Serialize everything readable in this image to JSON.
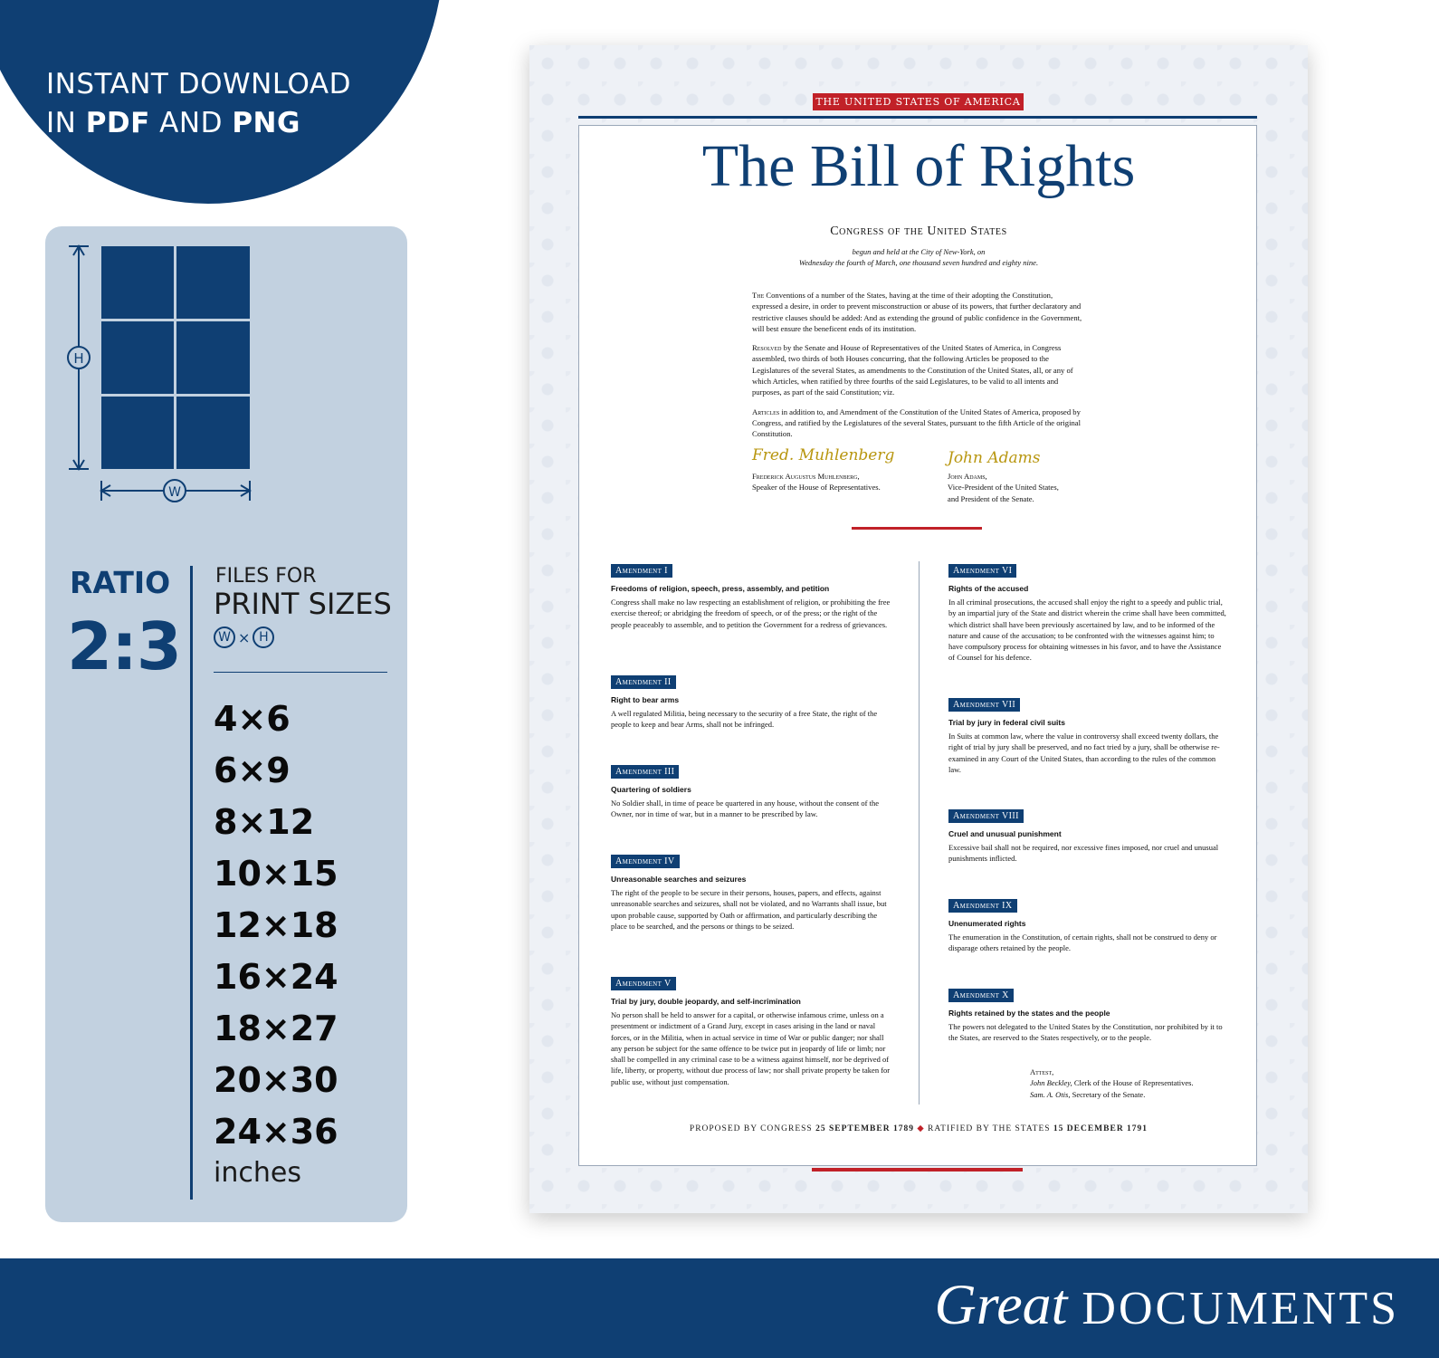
{
  "badge": {
    "line1": "INSTANT DOWNLOAD",
    "line2_pre": "IN ",
    "line2_pdf": "PDF",
    "line2_mid": " AND ",
    "line2_png": "PNG"
  },
  "panel": {
    "diagram_w": "W",
    "diagram_h": "H",
    "ratio_label": "RATIO",
    "ratio_value": "2:3",
    "files_for": "FILES FOR",
    "print_sizes": "PRINT SIZES",
    "wxh_w": "W",
    "wxh_x": "×",
    "wxh_h": "H",
    "sizes": [
      "4×6",
      "6×9",
      "8×12",
      "10×15",
      "12×18",
      "16×24",
      "18×27",
      "20×30",
      "24×36"
    ],
    "units": "inches"
  },
  "poster": {
    "band": "THE UNITED STATES OF AMERICA",
    "title": "The Bill of Rights",
    "congress": "Congress of the United States",
    "begun_1": "begun and held at the City of New-York, on",
    "begun_2": "Wednesday the fourth of March, one thousand seven hundred and eighty nine.",
    "pre_1_sc": "The",
    "pre_1": " Conventions of a number of the States, having at the time of their adopting the Constitution, expressed a desire, in order to prevent misconstruction or abuse of its powers, that further declaratory and restrictive clauses should be added: And as extending the ground of public confidence in the Government, will best ensure the beneficent ends of its institution.",
    "pre_2_sc": "Resolved",
    "pre_2": " by the Senate and House of Representatives of the United States of America, in Congress assembled, two thirds of both Houses concurring, that the following Articles be proposed to the Legislatures of the several States, as amendments to the Constitution of the United States, all, or any of which Articles, when ratified by three fourths of the said Legislatures, to be valid to all intents and purposes, as part of the said Constitution; viz.",
    "pre_3_sc": "Articles",
    "pre_3": " in addition to, and Amendment of the Constitution of the United States of America, proposed by Congress, and ratified by the Legislatures of the several States, pursuant to the fifth Article of the original Constitution.",
    "sig1_script": "Fred. Muhlenberg",
    "sig1_name": "Frederick Augustus Muhlenberg,",
    "sig1_role": "Speaker of the House of Representatives.",
    "sig2_script": "John Adams",
    "sig2_name": "John Adams,",
    "sig2_role1": "Vice-President of the United States,",
    "sig2_role2": "and President of the Senate.",
    "amendments": [
      {
        "tag": "Amendment I",
        "sub": "Freedoms of religion, speech, press, assembly, and petition",
        "body": "Congress shall make no law respecting an establishment of religion, or prohibiting the free exercise thereof; or abridging the freedom of speech, or of the press; or the right of the people peaceably to assemble, and to petition the Government for a redress of grievances."
      },
      {
        "tag": "Amendment II",
        "sub": "Right to bear arms",
        "body": "A well regulated Militia, being necessary to the security of a free State, the right of the people to keep and bear Arms, shall not be infringed."
      },
      {
        "tag": "Amendment III",
        "sub": "Quartering of soldiers",
        "body": "No Soldier shall, in time of peace be quartered in any house, without the consent of the Owner, nor in time of war, but in a manner to be prescribed by law."
      },
      {
        "tag": "Amendment IV",
        "sub": "Unreasonable searches and seizures",
        "body": "The right of the people to be secure in their persons, houses, papers, and effects, against unreasonable searches and seizures, shall not be violated, and no Warrants shall issue, but upon probable cause, supported by Oath or affirmation, and particularly describing the place to be searched, and the persons or things to be seized."
      },
      {
        "tag": "Amendment V",
        "sub": "Trial by jury, double jeopardy, and self-incrimination",
        "body": "No person shall be held to answer for a capital, or otherwise infamous crime, unless on a presentment or indictment of a Grand Jury, except in cases arising in the land or naval forces, or in the Militia, when in actual service in time of War or public danger; nor shall any person be subject for the same offence to be twice put in jeopardy of life or limb; nor shall be compelled in any criminal case to be a witness against himself, nor be deprived of life, liberty, or property, without due process of law; nor shall private property be taken for public use, without just compensation."
      },
      {
        "tag": "Amendment VI",
        "sub": "Rights of the accused",
        "body": "In all criminal prosecutions, the accused shall enjoy the right to a speedy and public trial, by an impartial jury of the State and district wherein the crime shall have been committed, which district shall have been previously ascertained by law, and to be informed of the nature and cause of the accusation; to be confronted with the witnesses against him; to have compulsory process for obtaining witnesses in his favor, and to have the Assistance of Counsel for his defence."
      },
      {
        "tag": "Amendment VII",
        "sub": "Trial by jury in federal civil suits",
        "body": "In Suits at common law, where the value in controversy shall exceed twenty dollars, the right of trial by jury shall be preserved, and no fact tried by a jury, shall be otherwise re-examined in any Court of the United States, than according to the rules of the common law."
      },
      {
        "tag": "Amendment VIII",
        "sub": "Cruel and unusual punishment",
        "body": "Excessive bail shall not be required, nor excessive fines imposed, nor cruel and unusual punishments inflicted."
      },
      {
        "tag": "Amendment IX",
        "sub": "Unenumerated rights",
        "body": "The enumeration in the Constitution, of certain rights, shall not be construed to deny or disparage others retained by the people."
      },
      {
        "tag": "Amendment X",
        "sub": "Rights retained by the states and the people",
        "body": "The powers not delegated to the United States by the Constitution, nor prohibited by it to the States, are reserved to the States respectively, or to the people."
      }
    ],
    "attest_label": "Attest,",
    "attest_1_name": "John Beckley,",
    "attest_1_role": " Clerk of the House of Representatives.",
    "attest_2_name": "Sam. A. Otis,",
    "attest_2_role": " Secretary of the Senate.",
    "proposed_pre": "PROPOSED BY CONGRESS ",
    "proposed_date": "25 SEPTEMBER 1789",
    "diamond": "◆",
    "ratified_pre": "RATIFIED BY THE STATES ",
    "ratified_date": "15 DECEMBER 1791"
  },
  "brand": {
    "great": "Great",
    "documents": "DOCUMENTS"
  },
  "colors": {
    "navy": "#0f3f73",
    "panel": "#c2d1e0",
    "red": "#c12128",
    "gold": "#b8960f"
  }
}
